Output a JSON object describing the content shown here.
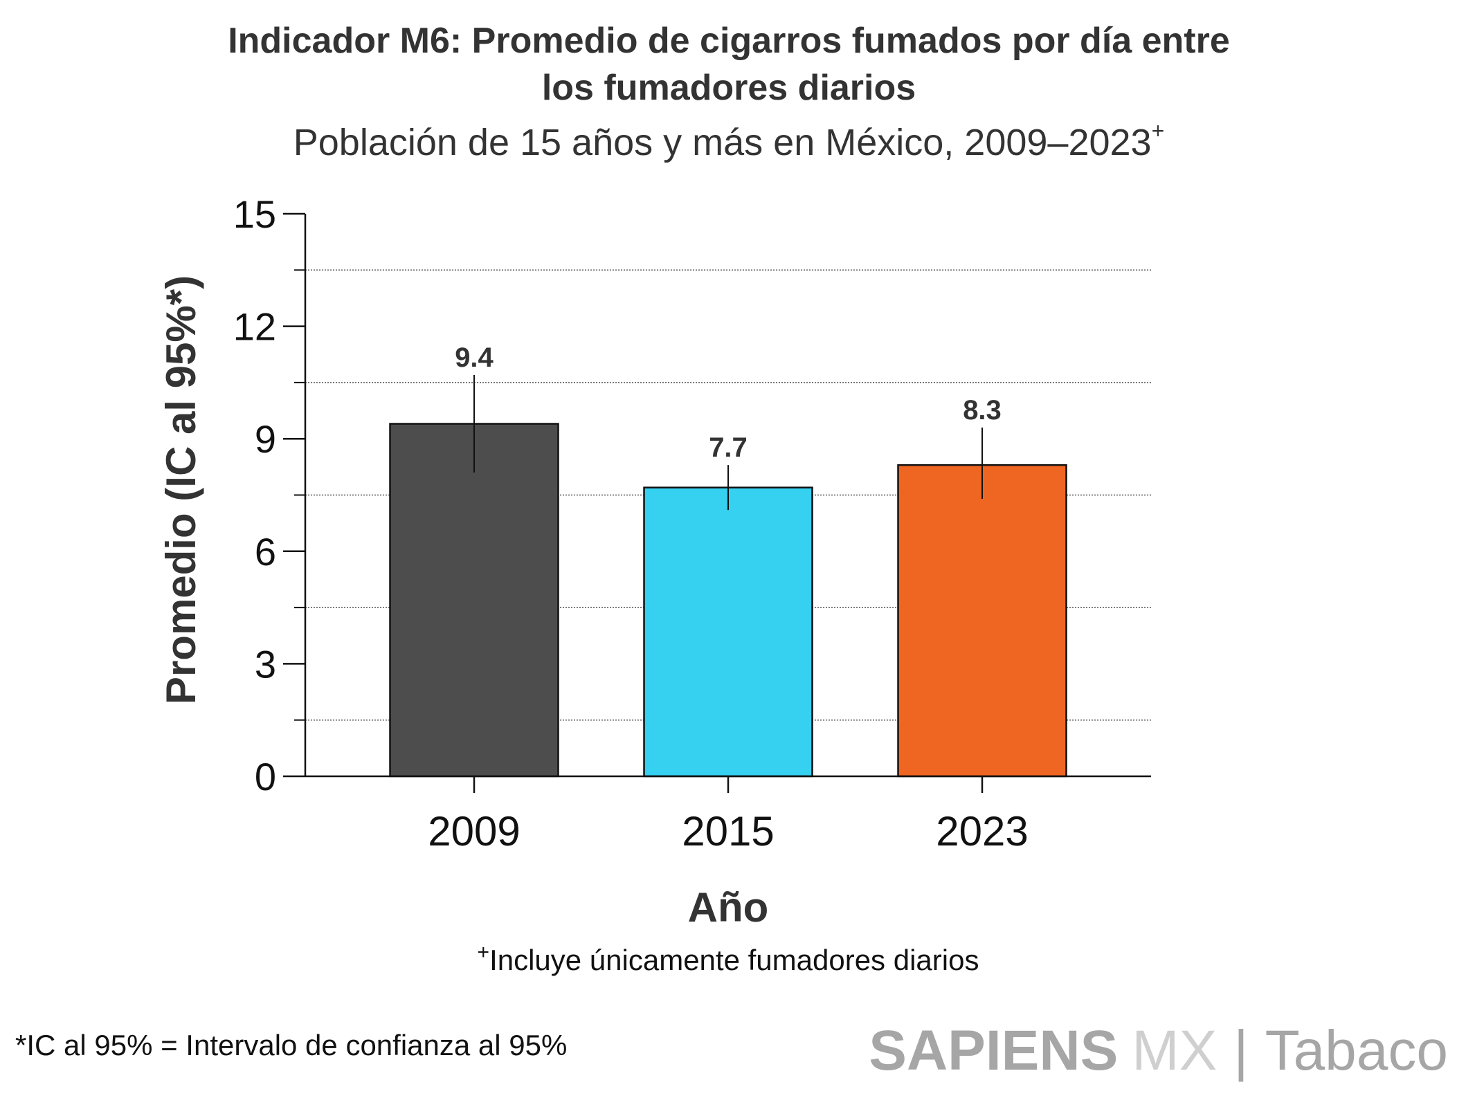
{
  "chart_data": {
    "type": "bar",
    "title": "Indicador M6: Promedio de cigarros fumados por día entre los fumadores diarios",
    "title_lines": [
      "Indicador M6: Promedio de cigarros fumados por día entre",
      "los fumadores diarios"
    ],
    "subtitle": "Población de 15 años y más en México, 2009–2023",
    "subtitle_mark": "+",
    "xlabel": "Año",
    "ylabel": "Promedio (IC al 95%*)",
    "categories": [
      "2009",
      "2015",
      "2023"
    ],
    "values": [
      9.4,
      7.7,
      8.3
    ],
    "data_labels": [
      "9.4",
      "7.7",
      "8.3"
    ],
    "ci_lower": [
      8.1,
      7.1,
      7.4
    ],
    "ci_upper": [
      10.7,
      8.3,
      9.3
    ],
    "colors": [
      "#4d4d4d",
      "#36d0f0",
      "#ef6622"
    ],
    "ylim": [
      0,
      15
    ],
    "yticks": [
      "0",
      "3",
      "6",
      "9",
      "12",
      "15"
    ],
    "grid": "dotted horizontal lines at 1.5, 4.5, 7.5, 10.5, 13.5",
    "legend": "none"
  },
  "footnote_mark": "+",
  "footnote": "Incluye únicamente fumadores diarios",
  "ci_note": "*IC al 95% = Intervalo de confianza al 95%",
  "logo": {
    "bold": "SAPIENS",
    "light": "MX",
    "sep": "|",
    "section": "Tabaco"
  }
}
